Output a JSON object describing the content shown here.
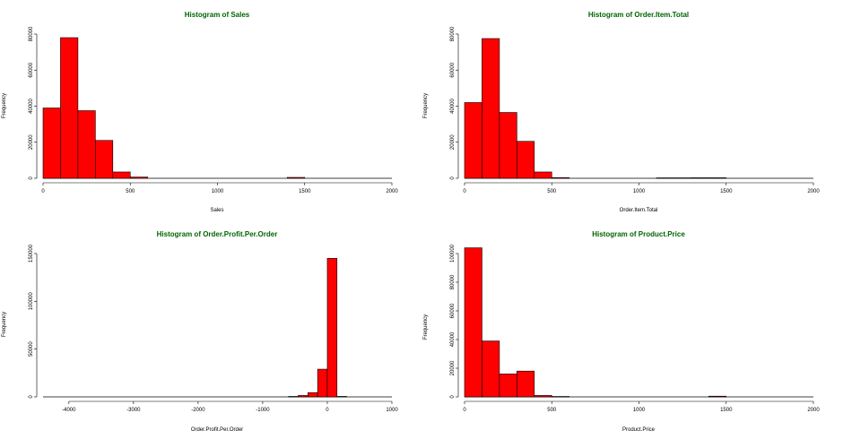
{
  "colors": {
    "bar_fill": "#ff0000",
    "title": "#006400",
    "bar_stroke": "#000000"
  },
  "chart_data": [
    {
      "type": "bar",
      "title": "Histogram of Sales",
      "xlabel": "Sales",
      "ylabel": "Frequency",
      "xlim": [
        0,
        2000
      ],
      "ylim": [
        0,
        80000
      ],
      "xticks": [
        0,
        500,
        1000,
        1500,
        2000
      ],
      "yticks": [
        0,
        20000,
        40000,
        60000,
        80000
      ],
      "bin_width": 100,
      "bins": [
        {
          "start": 0,
          "count": 39000
        },
        {
          "start": 100,
          "count": 78000
        },
        {
          "start": 200,
          "count": 37500
        },
        {
          "start": 300,
          "count": 21000
        },
        {
          "start": 400,
          "count": 3500
        },
        {
          "start": 500,
          "count": 700
        },
        {
          "start": 1400,
          "count": 500
        }
      ]
    },
    {
      "type": "bar",
      "title": "Histogram of Order.Item.Total",
      "xlabel": "Order.Item.Total",
      "ylabel": "Frequency",
      "xlim": [
        0,
        2000
      ],
      "ylim": [
        0,
        80000
      ],
      "xticks": [
        0,
        500,
        1000,
        1500,
        2000
      ],
      "yticks": [
        0,
        20000,
        40000,
        60000,
        80000
      ],
      "bin_width": 100,
      "bins": [
        {
          "start": 0,
          "count": 42000
        },
        {
          "start": 100,
          "count": 77500
        },
        {
          "start": 200,
          "count": 36500
        },
        {
          "start": 300,
          "count": 20500
        },
        {
          "start": 400,
          "count": 3500
        },
        {
          "start": 500,
          "count": 400
        },
        {
          "start": 1100,
          "count": 250
        },
        {
          "start": 1200,
          "count": 250
        },
        {
          "start": 1300,
          "count": 300
        },
        {
          "start": 1400,
          "count": 300
        }
      ]
    },
    {
      "type": "bar",
      "title": "Histogram of Order.Profit.Per.Order",
      "xlabel": "Order.Profit.Per.Order",
      "ylabel": "Frequency",
      "xlim": [
        -4400,
        1000
      ],
      "ylim": [
        0,
        150000
      ],
      "xticks": [
        -4000,
        -3000,
        -2000,
        -1000,
        0,
        1000
      ],
      "yticks": [
        0,
        50000,
        100000,
        150000
      ],
      "bin_width": 150,
      "bins": [
        {
          "start": -600,
          "count": 500
        },
        {
          "start": -450,
          "count": 1500
        },
        {
          "start": -300,
          "count": 4500
        },
        {
          "start": -150,
          "count": 29000
        },
        {
          "start": 0,
          "count": 145000
        },
        {
          "start": 150,
          "count": 500
        }
      ]
    },
    {
      "type": "bar",
      "title": "Histogram of Product.Price",
      "xlabel": "Product.Price",
      "ylabel": "Frequency",
      "xlim": [
        0,
        2000
      ],
      "ylim": [
        0,
        100000
      ],
      "xticks": [
        0,
        500,
        1000,
        1500,
        2000
      ],
      "yticks": [
        0,
        20000,
        40000,
        60000,
        80000,
        100000
      ],
      "bin_width": 100,
      "bins": [
        {
          "start": 0,
          "count": 104000
        },
        {
          "start": 100,
          "count": 39000
        },
        {
          "start": 200,
          "count": 16000
        },
        {
          "start": 300,
          "count": 18000
        },
        {
          "start": 400,
          "count": 1000
        },
        {
          "start": 500,
          "count": 300
        },
        {
          "start": 1400,
          "count": 500
        }
      ]
    }
  ]
}
